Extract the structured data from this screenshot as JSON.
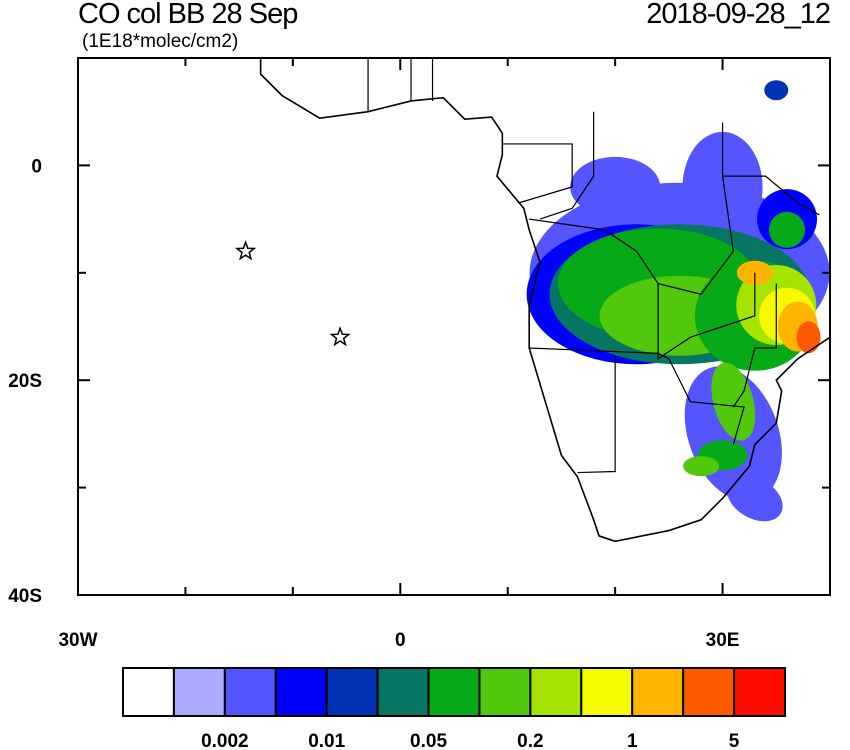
{
  "header": {
    "title": "CO col BB 28 Sep",
    "units": "(1E18*molec/cm2)",
    "datetime": "2018-09-28_12"
  },
  "map": {
    "lon_range": [
      -30,
      40
    ],
    "lat_range": [
      -40,
      10
    ],
    "x_tick_labels": [
      {
        "lon": -30,
        "label": "30W"
      },
      {
        "lon": 0,
        "label": "0"
      },
      {
        "lon": 30,
        "label": "30E"
      }
    ],
    "y_tick_labels": [
      {
        "lat": 0,
        "label": "0"
      },
      {
        "lat": -20,
        "label": "20S"
      },
      {
        "lat": -40,
        "label": "40S"
      }
    ],
    "markers": [
      {
        "name": "star",
        "lon": -14.4,
        "lat": -8.0
      },
      {
        "name": "star",
        "lon": -5.6,
        "lat": -16.0
      }
    ]
  },
  "colorbar": {
    "colors": [
      "#ffffff",
      "#aaaaff",
      "#5555ff",
      "#0000ff",
      "#0033b3",
      "#067662",
      "#06aa16",
      "#52c80c",
      "#a6e400",
      "#f5fa00",
      "#ffb400",
      "#ff5a00",
      "#ff0c00"
    ],
    "labels": [
      "0.002",
      "0.01",
      "0.05",
      "0.2",
      "1",
      "5"
    ]
  }
}
